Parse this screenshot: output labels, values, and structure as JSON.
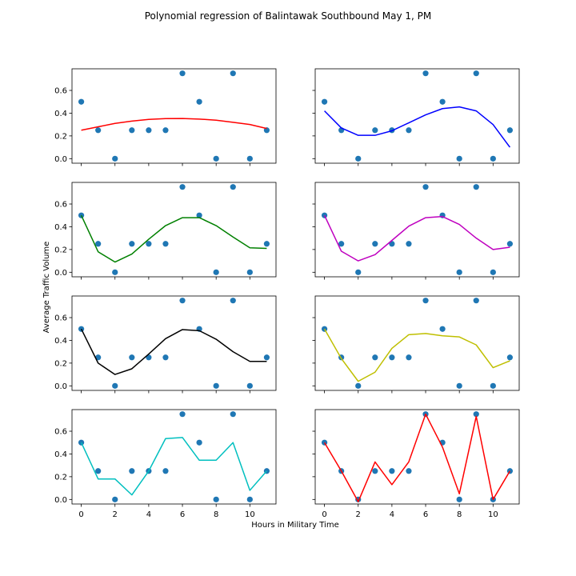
{
  "figure": {
    "title": "Polynomial regression of Balintawak Southbound May 1, PM",
    "xlabel": "Hours in Military Time",
    "ylabel": "Average Traffic Volume"
  },
  "colors": {
    "points": "#1f77b4",
    "frame": "#000000"
  },
  "chart_data": {
    "type": "scatter",
    "x": [
      0,
      1,
      2,
      3,
      4,
      5,
      6,
      7,
      8,
      9,
      10,
      11
    ],
    "points": [
      0.5,
      0.25,
      0.0,
      0.25,
      0.25,
      0.25,
      0.75,
      0.5,
      0.0,
      0.75,
      0.0,
      0.25
    ],
    "xlim": [
      -0.55,
      11.55
    ],
    "ylim": [
      -0.04,
      0.79
    ],
    "xticks": [
      0,
      2,
      4,
      6,
      8,
      10
    ],
    "yticks": [
      0.0,
      0.2,
      0.4,
      0.6
    ],
    "ytick_labels": [
      "0.0",
      "0.2",
      "0.4",
      "0.6"
    ],
    "grid": false,
    "subplots": [
      {
        "color": "#ff0000",
        "fit": [
          0.25,
          0.28,
          0.31,
          0.33,
          0.345,
          0.352,
          0.353,
          0.348,
          0.338,
          0.32,
          0.3,
          0.265
        ]
      },
      {
        "color": "#0000ff",
        "fit": [
          0.42,
          0.27,
          0.205,
          0.205,
          0.245,
          0.315,
          0.385,
          0.44,
          0.455,
          0.42,
          0.3,
          0.1
        ]
      },
      {
        "color": "#008000",
        "fit": [
          0.5,
          0.18,
          0.09,
          0.16,
          0.29,
          0.41,
          0.48,
          0.48,
          0.41,
          0.31,
          0.215,
          0.21
        ]
      },
      {
        "color": "#bf00bf",
        "fit": [
          0.5,
          0.185,
          0.1,
          0.155,
          0.28,
          0.405,
          0.48,
          0.49,
          0.42,
          0.3,
          0.2,
          0.22
        ]
      },
      {
        "color": "#000000",
        "fit": [
          0.5,
          0.2,
          0.1,
          0.15,
          0.28,
          0.415,
          0.495,
          0.485,
          0.41,
          0.3,
          0.215,
          0.215
        ]
      },
      {
        "color": "#bfbf00",
        "fit": [
          0.5,
          0.24,
          0.04,
          0.12,
          0.33,
          0.45,
          0.46,
          0.44,
          0.43,
          0.36,
          0.16,
          0.22
        ]
      },
      {
        "color": "#00bfbf",
        "fit": [
          0.5,
          0.18,
          0.18,
          0.04,
          0.25,
          0.535,
          0.545,
          0.345,
          0.345,
          0.5,
          0.08,
          0.25
        ]
      },
      {
        "color": "#ff0000",
        "fit": [
          0.5,
          0.25,
          -0.02,
          0.33,
          0.13,
          0.33,
          0.75,
          0.46,
          0.05,
          0.73,
          0.0,
          0.25
        ]
      }
    ]
  }
}
